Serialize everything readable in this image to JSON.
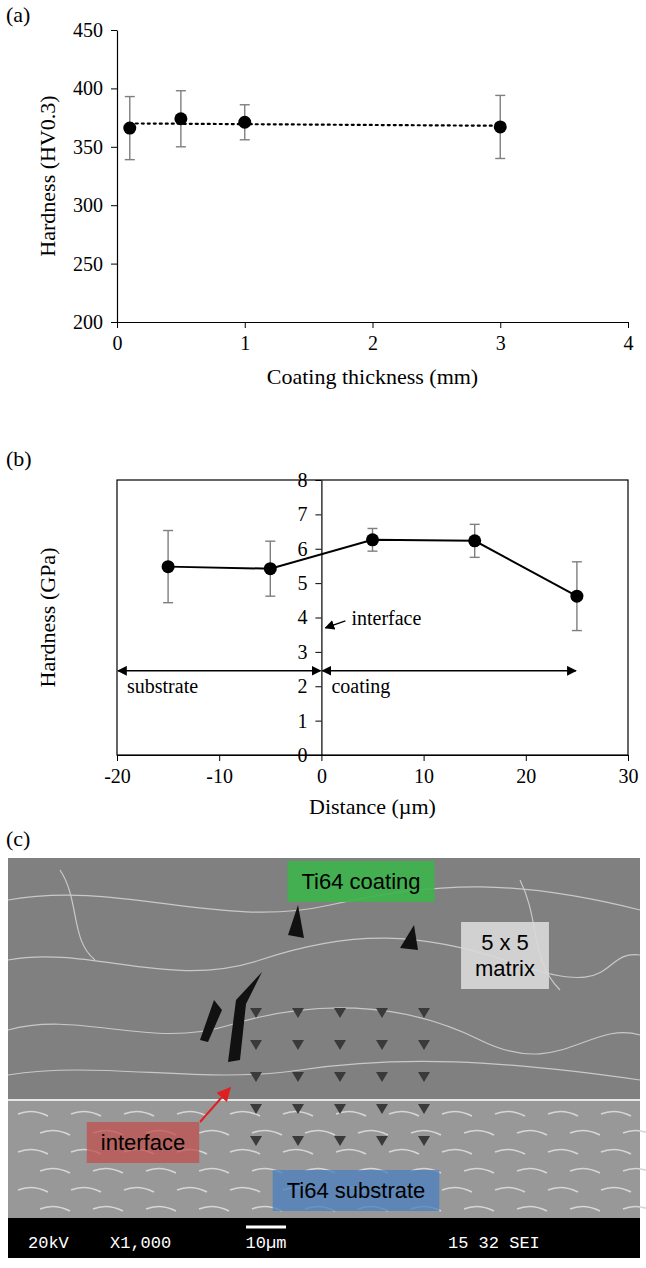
{
  "panel_labels": [
    "(a)",
    "(b)",
    "(c)"
  ],
  "chart_data": [
    {
      "type": "scatter",
      "x_label": "Coating thickness (mm)",
      "y_label": "Hardness (HV0.3)",
      "xlim": [
        0,
        4
      ],
      "xticks": [
        0,
        1,
        2,
        3,
        4
      ],
      "ylim": [
        200,
        450
      ],
      "yticks": [
        200,
        250,
        300,
        350,
        400,
        450
      ],
      "grid": false,
      "series": [
        {
          "type": "scatter",
          "marker": "circle",
          "line_style": "none",
          "color": "#000000",
          "x": [
            0.1,
            0.5,
            1,
            3
          ],
          "values": [
            366,
            374,
            371,
            367
          ],
          "errors": [
            27,
            24,
            15,
            27
          ]
        },
        {
          "type": "line",
          "line_style": "dotted",
          "color": "#000000",
          "x": [
            0.1,
            3
          ],
          "values": [
            370,
            368
          ]
        }
      ]
    },
    {
      "type": "line",
      "x_label": "Distance (µm)",
      "y_label": "Hardness (GPa)",
      "xlim": [
        -20,
        30
      ],
      "xticks": [
        -20,
        -10,
        0,
        10,
        20,
        30
      ],
      "ylim": [
        0,
        8
      ],
      "yticks": [
        0,
        1,
        2,
        3,
        4,
        5,
        6,
        7,
        8
      ],
      "grid": false,
      "x": [
        -15,
        -5,
        5,
        15,
        25
      ],
      "series": [
        {
          "type": "line",
          "marker": "circle",
          "line_style": "solid",
          "color": "#000000",
          "values": [
            5.48,
            5.42,
            6.26,
            6.23,
            4.62
          ],
          "errors": [
            1.05,
            0.8,
            0.33,
            0.48,
            1.0
          ]
        }
      ],
      "annotations": [
        {
          "text": "interface",
          "x": 0,
          "y": 3.7
        },
        {
          "text": "substrate",
          "x": [
            -20,
            0
          ],
          "y": 2.45
        },
        {
          "text": "coating",
          "x": [
            0,
            25
          ],
          "y": 2.45
        }
      ]
    }
  ],
  "image": {
    "labels": [
      "Ti64 coating",
      "5 x 5 matrix",
      "interface",
      "Ti64 substrate"
    ],
    "info_bar": [
      "20kV",
      "X1,000",
      "10µm",
      "15 32 SEI"
    ]
  }
}
